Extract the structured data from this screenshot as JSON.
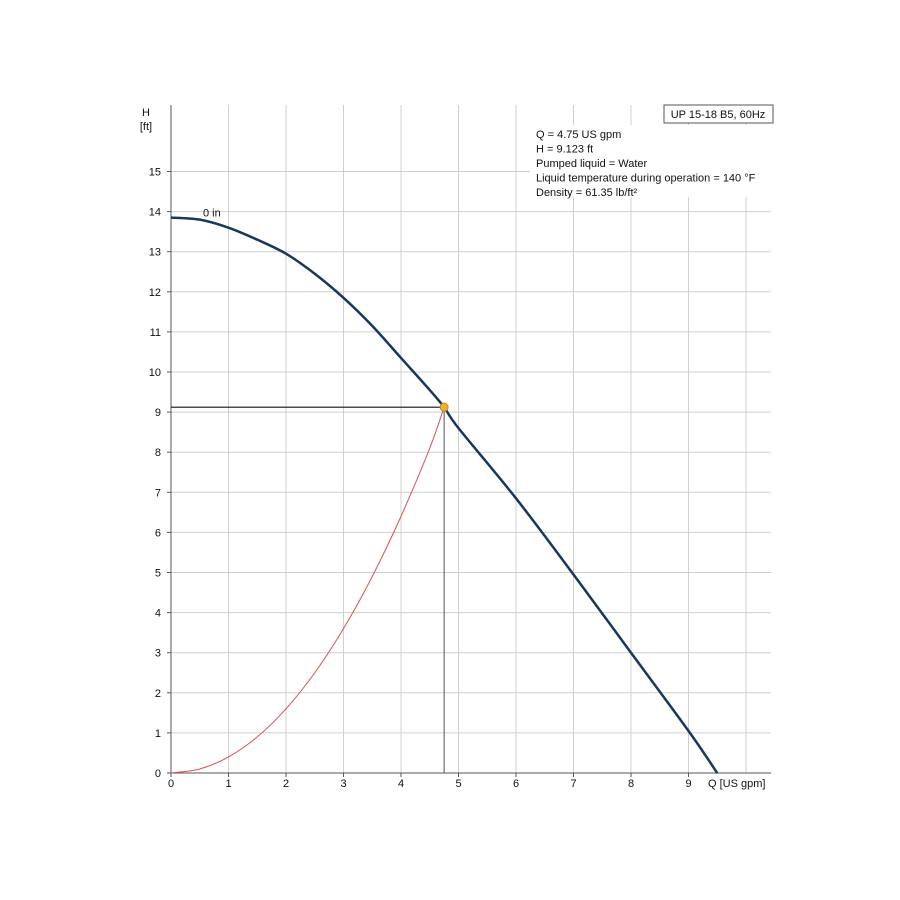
{
  "chart_data": {
    "type": "line",
    "title": "UP 15-18 B5, 60Hz",
    "xlabel": "Q [US gpm]",
    "ylabel_top": "H",
    "ylabel_unit": "[ft]",
    "xlim": [
      0,
      10.5
    ],
    "ylim": [
      0,
      16.5
    ],
    "xticks": [
      0,
      1,
      2,
      3,
      4,
      5,
      6,
      7,
      8,
      9
    ],
    "yticks": [
      0,
      1,
      2,
      3,
      4,
      5,
      6,
      7,
      8,
      9,
      10,
      11,
      12,
      13,
      14,
      15
    ],
    "grid": true,
    "series": [
      {
        "name": "0 in",
        "color": "#17375e",
        "x": [
          0,
          0.5,
          1,
          1.5,
          2,
          2.5,
          3,
          3.5,
          4,
          4.5,
          4.75,
          5,
          6,
          7,
          8,
          9,
          9.5
        ],
        "y": [
          13.85,
          13.8,
          13.6,
          13.3,
          12.95,
          12.45,
          11.85,
          11.15,
          10.35,
          9.55,
          9.123,
          8.6,
          6.85,
          4.95,
          3.0,
          1.05,
          0.0
        ]
      },
      {
        "name": "",
        "color": "#d9544f",
        "x": [
          0,
          0.5,
          1,
          1.5,
          2,
          2.5,
          3,
          3.5,
          4,
          4.5,
          4.75
        ],
        "y": [
          0,
          0.1,
          0.4,
          0.9,
          1.6,
          2.5,
          3.6,
          4.9,
          6.4,
          8.1,
          9.123
        ]
      }
    ],
    "operating_point": {
      "x": 4.75,
      "y": 9.123,
      "color": "#f0b030"
    },
    "info_lines": [
      "Q = 4.75 US gpm",
      "H = 9.123 ft",
      "Pumped liquid = Water",
      "Liquid temperature during operation = 140 °F",
      "Density = 61.35 lb/ft²"
    ]
  }
}
